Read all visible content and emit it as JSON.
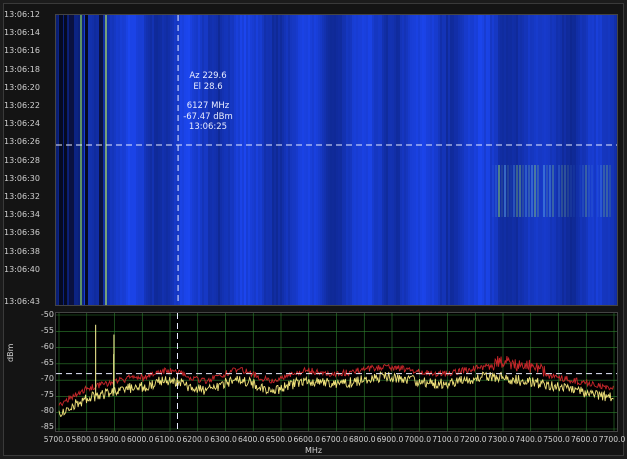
{
  "waterfall": {
    "time_labels": [
      "13:06:12",
      "13:06:14",
      "13:06:16",
      "13:06:18",
      "13:06:20",
      "13:06:22",
      "13:06:24",
      "13:06:26",
      "13:06:28",
      "13:06:30",
      "13:06:32",
      "13:06:34",
      "13:06:36",
      "13:06:38",
      "13:06:40",
      "13:06:43"
    ],
    "cursor": {
      "az": "Az 229.6",
      "el": "El 28.6",
      "freq": "6127 MHz",
      "power": "-67.47 dBm",
      "time": "13:06:25"
    }
  },
  "spectrum": {
    "y_ticks": [
      "-50",
      "-55",
      "-60",
      "-65",
      "-70",
      "-75",
      "-80",
      "-85"
    ],
    "y_title": "dBm",
    "x_ticks": [
      "5700.0",
      "5800.0",
      "5900.0",
      "6000.0",
      "6100.0",
      "6200.0",
      "6300.0",
      "6400.0",
      "6500.0",
      "6600.0",
      "6700.0",
      "6800.0",
      "6900.0",
      "7000.0",
      "7100.0",
      "7200.0",
      "7300.0",
      "7400.0",
      "7500.0",
      "7600.0",
      "7700.0"
    ],
    "x_title": "MHz",
    "reference_level_dbm": -68,
    "cursor_freq_mhz": 6127
  },
  "colors": {
    "waterfall_base": "#1530b8",
    "trace_live": "#f0e27a",
    "trace_max": "#c8262a",
    "grid": "#2e7d2e"
  }
}
